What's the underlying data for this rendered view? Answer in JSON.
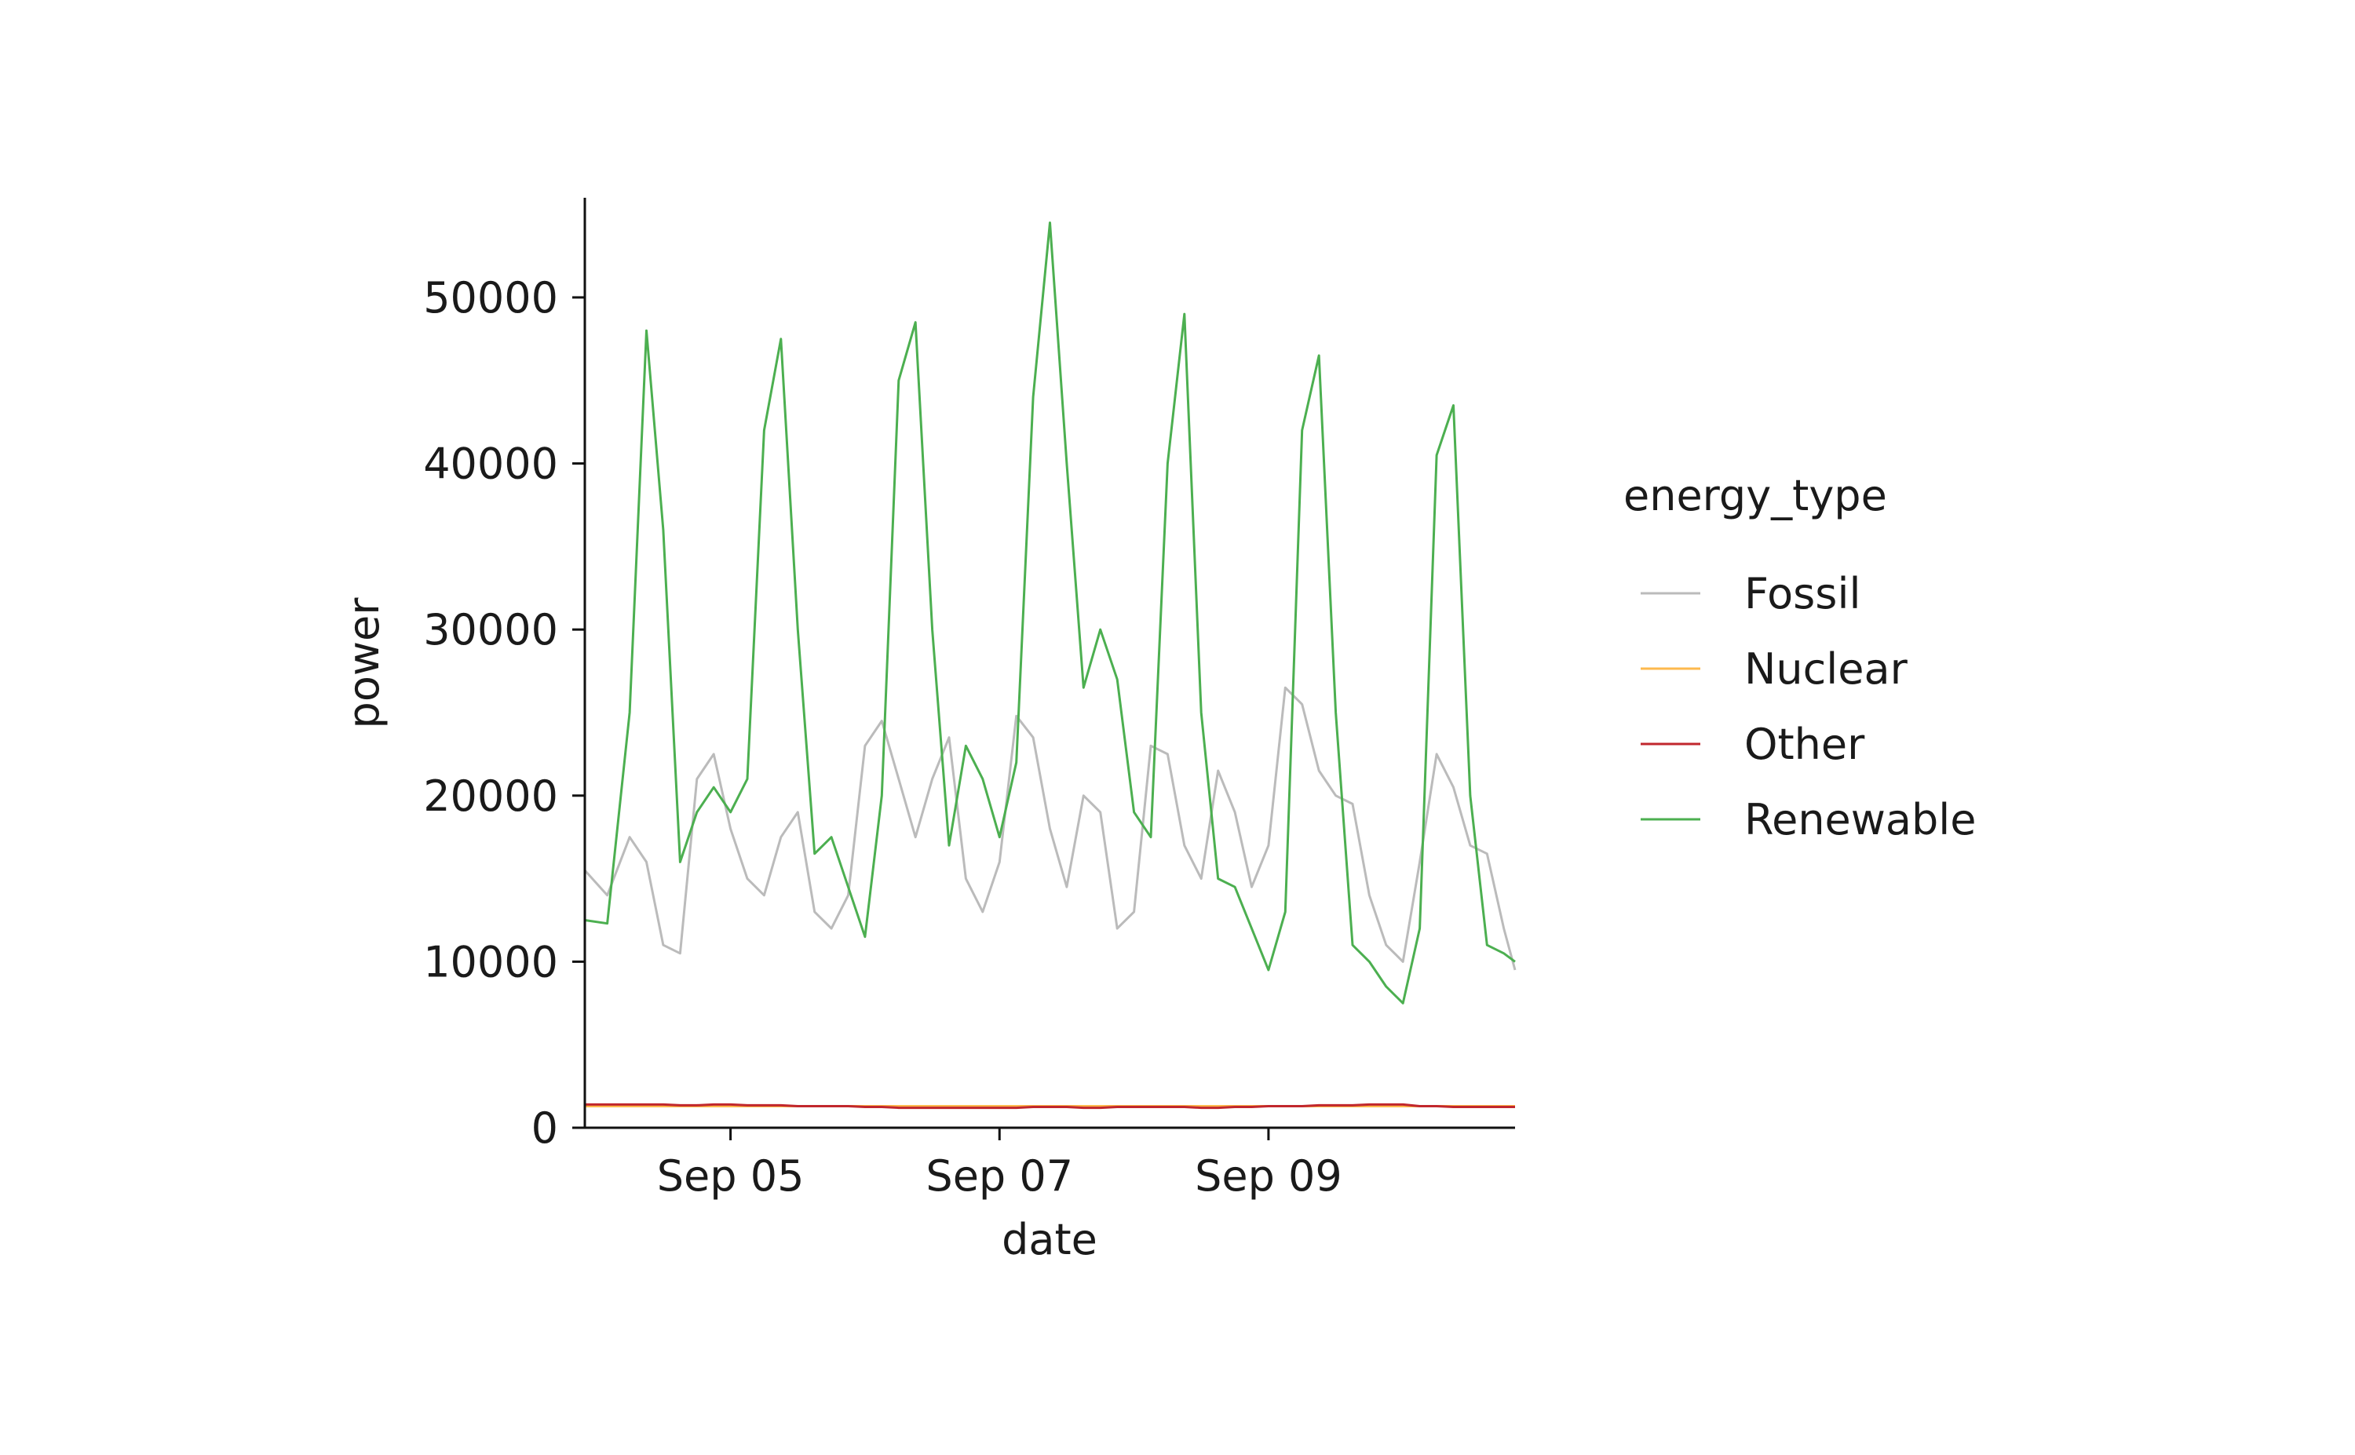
{
  "chart_data": {
    "type": "line",
    "xlabel": "date",
    "ylabel": "power",
    "x_ticks": [
      {
        "label": "Sep 05",
        "date": "2023-09-05"
      },
      {
        "label": "Sep 07",
        "date": "2023-09-07"
      },
      {
        "label": "Sep 09",
        "date": "2023-09-09"
      }
    ],
    "xlim": [
      "2023-09-03T22:00",
      "2023-09-10T20:00"
    ],
    "y_ticks": [
      0,
      10000,
      20000,
      30000,
      40000,
      50000
    ],
    "ylim": [
      0,
      56000
    ],
    "grid": false,
    "legend": {
      "title": "energy_type",
      "position": "right"
    },
    "x": [
      "2023-09-03T22:00",
      "2023-09-04T02:00",
      "2023-09-04T06:00",
      "2023-09-04T09:00",
      "2023-09-04T12:00",
      "2023-09-04T15:00",
      "2023-09-04T18:00",
      "2023-09-04T21:00",
      "2023-09-05T00:00",
      "2023-09-05T03:00",
      "2023-09-05T06:00",
      "2023-09-05T09:00",
      "2023-09-05T12:00",
      "2023-09-05T15:00",
      "2023-09-05T18:00",
      "2023-09-05T21:00",
      "2023-09-06T00:00",
      "2023-09-06T03:00",
      "2023-09-06T06:00",
      "2023-09-06T09:00",
      "2023-09-06T12:00",
      "2023-09-06T15:00",
      "2023-09-06T18:00",
      "2023-09-06T21:00",
      "2023-09-07T00:00",
      "2023-09-07T03:00",
      "2023-09-07T06:00",
      "2023-09-07T09:00",
      "2023-09-07T12:00",
      "2023-09-07T15:00",
      "2023-09-07T18:00",
      "2023-09-07T21:00",
      "2023-09-08T00:00",
      "2023-09-08T03:00",
      "2023-09-08T06:00",
      "2023-09-08T09:00",
      "2023-09-08T12:00",
      "2023-09-08T15:00",
      "2023-09-08T18:00",
      "2023-09-08T21:00",
      "2023-09-09T00:00",
      "2023-09-09T03:00",
      "2023-09-09T06:00",
      "2023-09-09T09:00",
      "2023-09-09T12:00",
      "2023-09-09T15:00",
      "2023-09-09T18:00",
      "2023-09-09T21:00",
      "2023-09-10T00:00",
      "2023-09-10T03:00",
      "2023-09-10T06:00",
      "2023-09-10T09:00",
      "2023-09-10T12:00",
      "2023-09-10T15:00",
      "2023-09-10T18:00",
      "2023-09-10T20:00"
    ],
    "series": [
      {
        "name": "Fossil",
        "color": "#bbbbbb",
        "values": [
          15500,
          14000,
          17500,
          16000,
          11000,
          10500,
          21000,
          22500,
          18000,
          15000,
          14000,
          17500,
          19000,
          13000,
          12000,
          14000,
          23000,
          24500,
          21000,
          17500,
          21000,
          23500,
          15000,
          13000,
          16000,
          24800,
          23500,
          18000,
          14500,
          20000,
          19000,
          12000,
          13000,
          23000,
          22500,
          17000,
          15000,
          21500,
          19000,
          14500,
          17000,
          26500,
          25500,
          21500,
          20000,
          19500,
          14000,
          11000,
          10000,
          16000,
          22500,
          20500,
          17000,
          16500,
          12000,
          9500
        ]
      },
      {
        "name": "Nuclear",
        "color": "#fdb94d",
        "values": [
          1300,
          1300,
          1300,
          1300,
          1300,
          1300,
          1300,
          1300,
          1300,
          1300,
          1300,
          1300,
          1300,
          1300,
          1300,
          1300,
          1300,
          1300,
          1300,
          1300,
          1300,
          1300,
          1300,
          1300,
          1300,
          1300,
          1300,
          1300,
          1300,
          1300,
          1300,
          1300,
          1300,
          1300,
          1300,
          1300,
          1300,
          1300,
          1300,
          1300,
          1300,
          1300,
          1300,
          1300,
          1300,
          1300,
          1300,
          1300,
          1300,
          1300,
          1300,
          1300,
          1300,
          1300,
          1300,
          1300
        ]
      },
      {
        "name": "Other",
        "color": "#c1272d",
        "values": [
          1400,
          1400,
          1400,
          1400,
          1400,
          1350,
          1350,
          1400,
          1400,
          1350,
          1350,
          1350,
          1300,
          1300,
          1300,
          1300,
          1250,
          1250,
          1200,
          1200,
          1200,
          1200,
          1200,
          1200,
          1200,
          1200,
          1250,
          1250,
          1250,
          1200,
          1200,
          1250,
          1250,
          1250,
          1250,
          1250,
          1200,
          1200,
          1250,
          1250,
          1300,
          1300,
          1300,
          1350,
          1350,
          1350,
          1400,
          1400,
          1400,
          1300,
          1300,
          1250,
          1250,
          1250,
          1250,
          1250
        ]
      },
      {
        "name": "Renewable",
        "color": "#4caf50",
        "values": [
          12500,
          12300,
          25000,
          48000,
          36000,
          16000,
          19000,
          20500,
          19000,
          21000,
          42000,
          47500,
          30000,
          16500,
          17500,
          14500,
          11500,
          20000,
          45000,
          48500,
          30000,
          17000,
          23000,
          21000,
          17500,
          22000,
          44000,
          54500,
          40000,
          26500,
          30000,
          27000,
          19000,
          17500,
          40000,
          49000,
          25000,
          15000,
          14500,
          12000,
          9500,
          13000,
          42000,
          46500,
          25000,
          11000,
          10000,
          8500,
          7500,
          12000,
          40500,
          43500,
          20000,
          11000,
          10500,
          10000
        ]
      }
    ]
  }
}
